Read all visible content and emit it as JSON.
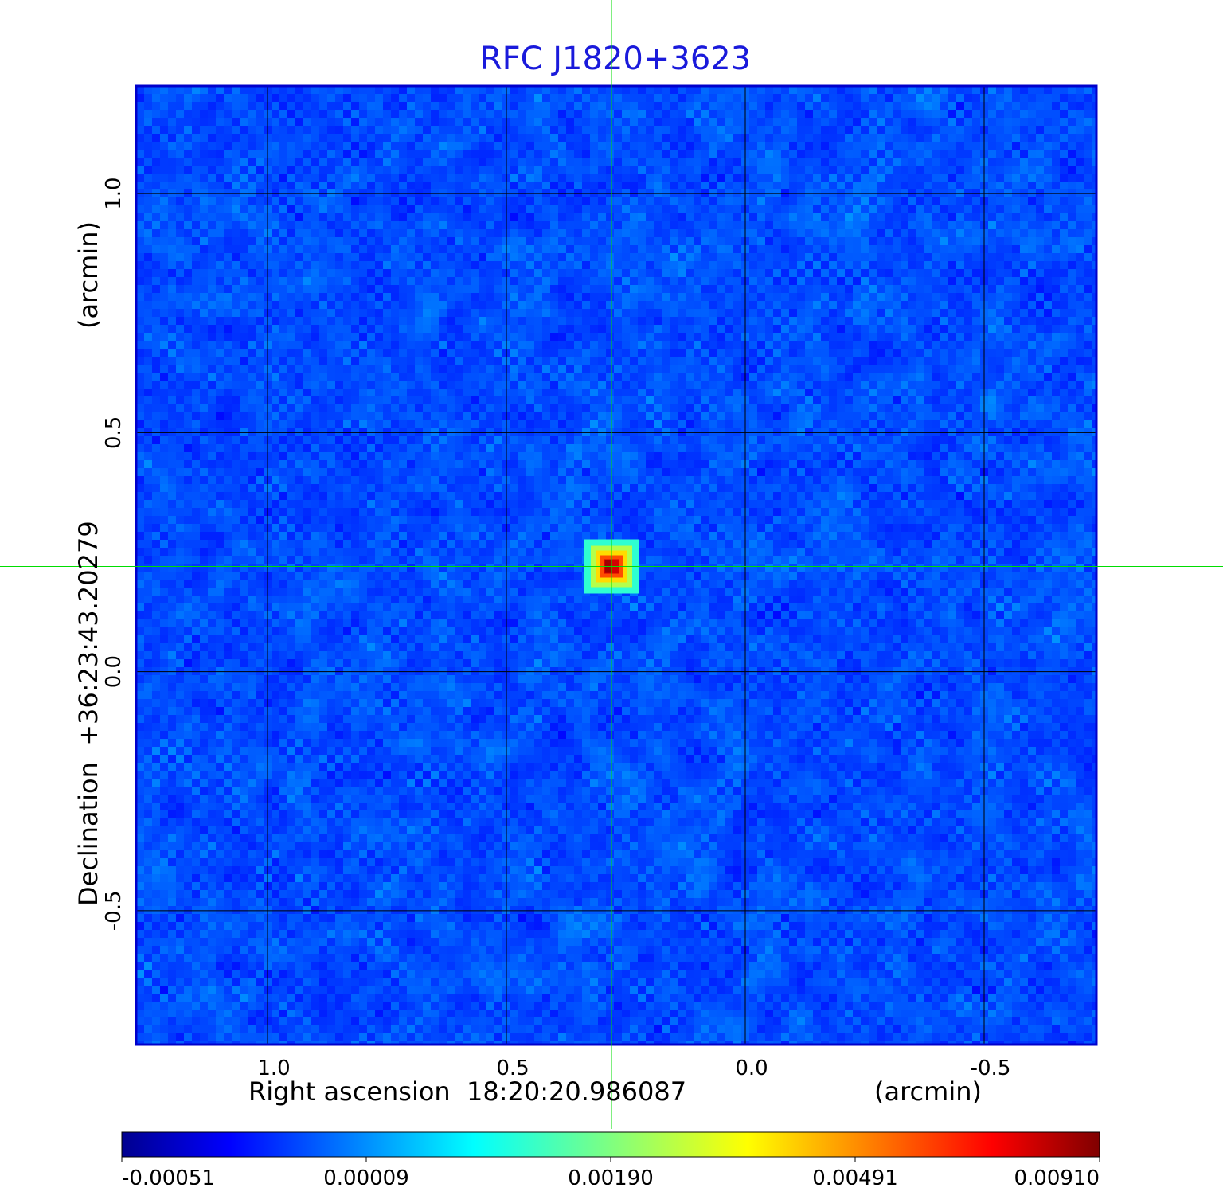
{
  "title": "RFC J1820+3623",
  "colors": {
    "title": "#1a1adb",
    "frame": "#0000cc",
    "grid": "#000000",
    "crosshair": "#00dd00",
    "background_map": "#1f8cf5"
  },
  "chart_data": {
    "type": "heatmap",
    "title": "RFC J1820+3623",
    "xlabel": "Right ascension  18:20:20.986087",
    "xunit": "(arcmin)",
    "ylabel": "Declination  +36:23:43.20279",
    "yunit": "(arcmin)",
    "xlim": [
      1.275,
      -0.735
    ],
    "ylim": [
      -0.78,
      1.225
    ],
    "x_ticks": [
      1.0,
      0.5,
      0.0,
      -0.5
    ],
    "x_tick_labels": [
      "1.0",
      "0.5",
      "0.0",
      "-0.5"
    ],
    "y_ticks": [
      1.0,
      0.5,
      0.0,
      -0.5
    ],
    "y_tick_labels": [
      "1.0",
      "0.5",
      "0.0",
      "-0.5"
    ],
    "grid": true,
    "crosshair": {
      "x": 0.28,
      "y": 0.22
    },
    "source": {
      "x": 0.28,
      "y": 0.22,
      "peak": 0.0091
    },
    "background_level": 9e-05,
    "colorbar": {
      "colormap": "jet",
      "ticks": [
        "-0.00051",
        "0.00009",
        "0.00190",
        "0.00491",
        "0.00910"
      ],
      "min": -0.00051,
      "max": 0.0091
    }
  }
}
